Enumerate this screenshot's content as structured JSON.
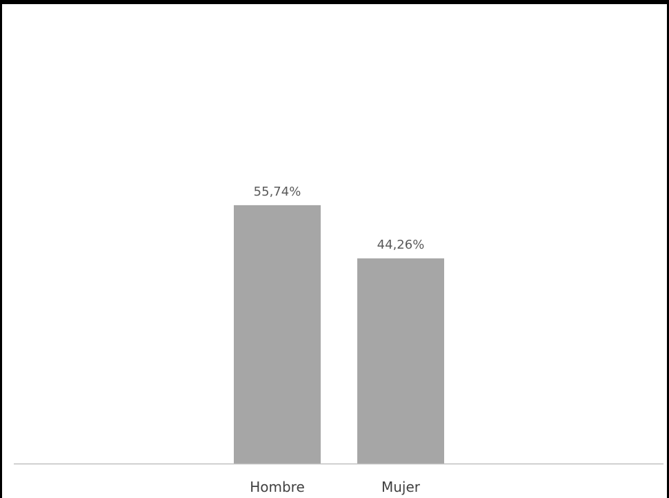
{
  "chart_data": {
    "type": "bar",
    "categories": [
      "Hombre",
      "Mujer"
    ],
    "values": [
      55.74,
      44.26
    ],
    "value_labels": [
      "55,74%",
      "44,26%"
    ],
    "title": "",
    "xlabel": "",
    "ylabel": "",
    "ylim": [
      0,
      100
    ],
    "grid": false,
    "legend": "none",
    "colors": {
      "bar": "#a6a6a6",
      "axis": "#bfbfbf",
      "label": "#595959"
    }
  }
}
